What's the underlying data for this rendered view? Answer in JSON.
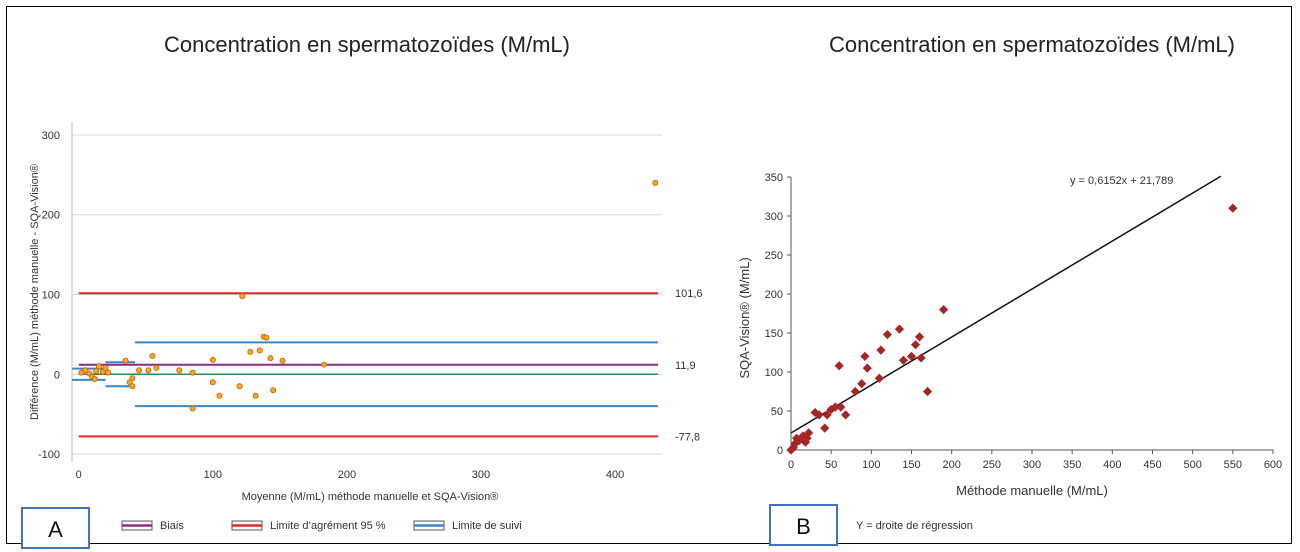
{
  "colors": {
    "bias": "#8b2c8b",
    "agreement": "#e8232a",
    "follow": "#3a86c6",
    "zero": "#2e8b57",
    "points_a": "#f5a623",
    "points_a_edge": "#c2650a",
    "points_b": "#a62626",
    "grid": "#d9d9d9",
    "box_border": "#4472c4"
  },
  "panel_a": {
    "letter": "A",
    "legend": [
      "Biais",
      "Limite d’agrément 95 %",
      "Limite de suivi"
    ]
  },
  "panel_b": {
    "letter": "B",
    "note": "Y = droite de régression"
  },
  "chart_data": [
    {
      "type": "scatter",
      "title": "Concentration en spermatozoïdes (M/mL)",
      "xlabel": "Moyenne (M/mL) méthode manuelle et SQA-Vision®",
      "ylabel": "Différence (M/mL) méthode manuelle - SQA-Vision®",
      "xlim": [
        -5,
        435
      ],
      "ylim": [
        -110,
        310
      ],
      "xticks": [
        0,
        100,
        200,
        300,
        400
      ],
      "yticks": [
        -100,
        0,
        100,
        200,
        300
      ],
      "grid": true,
      "points": [
        [
          2,
          2
        ],
        [
          5,
          5
        ],
        [
          8,
          1
        ],
        [
          10,
          -3
        ],
        [
          12,
          -6
        ],
        [
          13,
          4
        ],
        [
          15,
          10
        ],
        [
          18,
          3
        ],
        [
          20,
          8
        ],
        [
          22,
          2
        ],
        [
          35,
          17
        ],
        [
          38,
          -10
        ],
        [
          40,
          -5
        ],
        [
          40,
          -15
        ],
        [
          45,
          5
        ],
        [
          52,
          5
        ],
        [
          55,
          23
        ],
        [
          58,
          8
        ],
        [
          75,
          5
        ],
        [
          85,
          2
        ],
        [
          85,
          -43
        ],
        [
          100,
          -10
        ],
        [
          100,
          18
        ],
        [
          105,
          -27
        ],
        [
          120,
          -15
        ],
        [
          122,
          98
        ],
        [
          128,
          28
        ],
        [
          132,
          -27
        ],
        [
          135,
          30
        ],
        [
          138,
          47
        ],
        [
          140,
          46
        ],
        [
          143,
          20
        ],
        [
          145,
          -20
        ],
        [
          152,
          17
        ],
        [
          183,
          12
        ],
        [
          430,
          240
        ]
      ],
      "hlines": [
        {
          "series": "agreement",
          "y": 101.6,
          "x": [
            0,
            432
          ],
          "label": "101,6"
        },
        {
          "series": "bias",
          "y": 11.9,
          "x": [
            0,
            432
          ],
          "label": "11,9"
        },
        {
          "series": "agreement",
          "y": -77.8,
          "x": [
            0,
            432
          ],
          "label": "-77,8"
        },
        {
          "series": "zero",
          "y": 0,
          "x": [
            0,
            432
          ],
          "label": ""
        },
        {
          "series": "follow",
          "y": 40,
          "x": [
            42,
            432
          ],
          "label": ""
        },
        {
          "series": "follow",
          "y": -40,
          "x": [
            42,
            432
          ],
          "label": ""
        },
        {
          "series": "follow",
          "y": 7,
          "x": [
            -5,
            20
          ],
          "label": ""
        },
        {
          "series": "follow",
          "y": -7,
          "x": [
            -5,
            20
          ],
          "label": ""
        },
        {
          "series": "follow",
          "y": 15,
          "x": [
            20,
            42
          ],
          "label": ""
        },
        {
          "series": "follow",
          "y": -15,
          "x": [
            20,
            42
          ],
          "label": ""
        }
      ]
    },
    {
      "type": "scatter",
      "title": "Concentration en spermatozoïdes (M/mL)",
      "xlabel": "Méthode manuelle (M/mL)",
      "ylabel": "SQA-Vision® (M/mL)",
      "xlim": [
        0,
        600
      ],
      "ylim": [
        0,
        350
      ],
      "xticks": [
        0,
        50,
        100,
        150,
        200,
        250,
        300,
        350,
        400,
        450,
        500,
        550,
        600
      ],
      "yticks": [
        0,
        50,
        100,
        150,
        200,
        250,
        300,
        350
      ],
      "grid": false,
      "points": [
        [
          0,
          0
        ],
        [
          3,
          3
        ],
        [
          5,
          8
        ],
        [
          7,
          15
        ],
        [
          10,
          12
        ],
        [
          15,
          18
        ],
        [
          18,
          10
        ],
        [
          20,
          15
        ],
        [
          22,
          22
        ],
        [
          30,
          48
        ],
        [
          35,
          45
        ],
        [
          42,
          28
        ],
        [
          45,
          45
        ],
        [
          50,
          52
        ],
        [
          55,
          55
        ],
        [
          60,
          108
        ],
        [
          62,
          55
        ],
        [
          68,
          45
        ],
        [
          80,
          75
        ],
        [
          88,
          85
        ],
        [
          92,
          120
        ],
        [
          95,
          105
        ],
        [
          110,
          92
        ],
        [
          112,
          128
        ],
        [
          120,
          148
        ],
        [
          135,
          155
        ],
        [
          140,
          115
        ],
        [
          150,
          120
        ],
        [
          155,
          135
        ],
        [
          160,
          145
        ],
        [
          162,
          118
        ],
        [
          170,
          75
        ],
        [
          190,
          180
        ],
        [
          550,
          310
        ]
      ],
      "regression": {
        "slope": 0.6152,
        "intercept": 21.789,
        "x_range": [
          0,
          535
        ],
        "label": "y = 0,6152x + 21,789"
      }
    }
  ]
}
